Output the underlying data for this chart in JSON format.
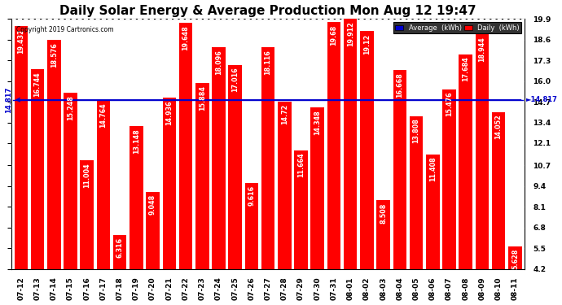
{
  "title": "Daily Solar Energy & Average Production Mon Aug 12 19:47",
  "copyright": "Copyright 2019 Cartronics.com",
  "average_value": 14.817,
  "average_label": "14.817",
  "bar_color": "#FF0000",
  "average_line_color": "#0000CD",
  "background_color": "#FFFFFF",
  "plot_bg_color": "#FFFFFF",
  "grid_color": "#AAAAAA",
  "categories": [
    "07-12",
    "07-13",
    "07-14",
    "07-15",
    "07-16",
    "07-17",
    "07-18",
    "07-19",
    "07-20",
    "07-21",
    "07-22",
    "07-23",
    "07-24",
    "07-25",
    "07-26",
    "07-27",
    "07-28",
    "07-29",
    "07-30",
    "07-31",
    "08-01",
    "08-02",
    "08-03",
    "08-04",
    "08-05",
    "08-06",
    "08-07",
    "08-08",
    "08-09",
    "08-10",
    "08-11"
  ],
  "values": [
    19.432,
    16.744,
    18.576,
    15.248,
    11.004,
    14.764,
    6.316,
    13.148,
    9.048,
    14.936,
    19.648,
    15.884,
    18.096,
    17.016,
    9.616,
    18.116,
    14.72,
    11.664,
    14.348,
    19.68,
    19.912,
    19.12,
    8.508,
    16.668,
    13.808,
    11.408,
    15.476,
    17.684,
    18.944,
    14.052,
    5.628
  ],
  "ylim_min": 4.2,
  "ylim_max": 19.9,
  "yticks": [
    4.2,
    5.5,
    6.8,
    8.1,
    9.4,
    10.7,
    12.1,
    13.4,
    14.7,
    16.0,
    17.3,
    18.6,
    19.9
  ],
  "legend_avg_color": "#0000CD",
  "legend_daily_color": "#FF0000",
  "right_label_color": "#0000CD",
  "title_fontsize": 11,
  "tick_fontsize": 6.5,
  "bar_label_fontsize": 5.8,
  "val_label_color": "#FF0000"
}
